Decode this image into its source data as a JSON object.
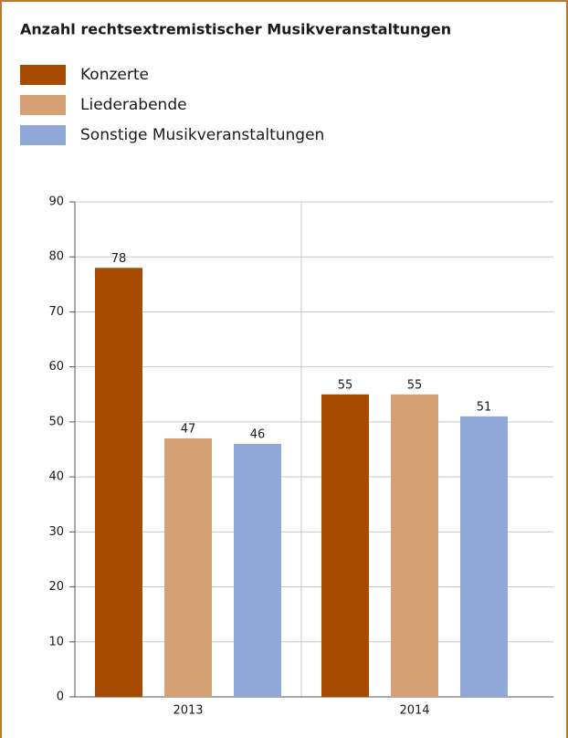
{
  "chart_data": {
    "type": "bar",
    "title": "Anzahl rechtsextremistischer Musikveranstaltungen",
    "categories": [
      "2013",
      "2014"
    ],
    "series": [
      {
        "name": "Konzerte",
        "color": "#a64b00",
        "values": [
          78,
          55
        ]
      },
      {
        "name": "Liederabende",
        "color": "#d4a074",
        "values": [
          47,
          55
        ]
      },
      {
        "name": "Sonstige Musikveranstaltungen",
        "color": "#8fa8d8",
        "values": [
          46,
          51
        ]
      }
    ],
    "ylim": [
      0,
      90
    ],
    "yticks": [
      0,
      10,
      20,
      30,
      40,
      50,
      60,
      70,
      80,
      90
    ],
    "grid": true,
    "legend": "top"
  }
}
